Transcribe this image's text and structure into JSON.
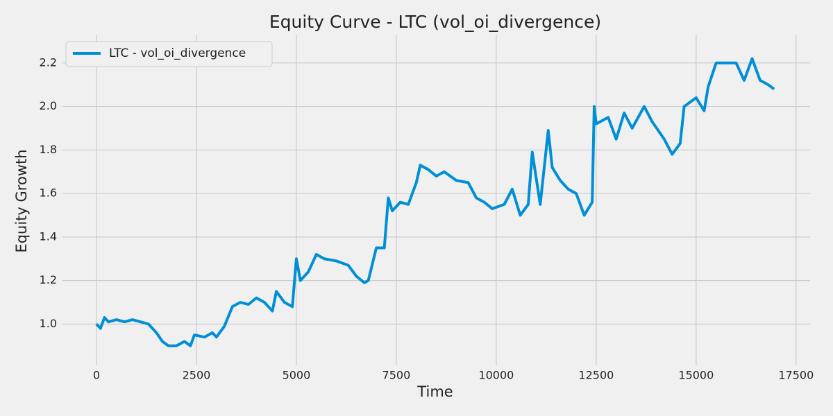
{
  "chart_data": {
    "type": "line",
    "title": "Equity Curve - LTC (vol_oi_divergence)",
    "x_label": "Time",
    "y_label": "Equity Growth",
    "xlim": [
      -850,
      17850
    ],
    "ylim": [
      0.81,
      2.33
    ],
    "xticks": [
      0,
      2500,
      5000,
      7500,
      10000,
      12500,
      15000,
      17500
    ],
    "yticks": [
      {
        "value": 1,
        "label": "1.0"
      },
      1.2,
      1.4,
      1.6,
      1.8,
      {
        "value": 2,
        "label": "2.0"
      },
      2.2
    ],
    "grid": true,
    "legend": "upper left",
    "x": [
      0,
      100,
      200,
      300,
      500,
      700,
      900,
      1100,
      1300,
      1500,
      1650,
      1800,
      2000,
      2200,
      2350,
      2450,
      2700,
      2900,
      3000,
      3200,
      3400,
      3600,
      3800,
      4000,
      4200,
      4400,
      4500,
      4700,
      4900,
      5000,
      5100,
      5300,
      5500,
      5700,
      6000,
      6300,
      6500,
      6700,
      6800,
      7000,
      7200,
      7300,
      7400,
      7600,
      7800,
      8000,
      8100,
      8300,
      8500,
      8700,
      9000,
      9300,
      9500,
      9700,
      9900,
      10200,
      10400,
      10600,
      10800,
      10900,
      11100,
      11300,
      11400,
      11600,
      11800,
      12000,
      12200,
      12400,
      12450,
      12500,
      12800,
      13000,
      13200,
      13400,
      13700,
      13900,
      14200,
      14400,
      14600,
      14700,
      15000,
      15200,
      15300,
      15500,
      15800,
      16000,
      16200,
      16400,
      16600,
      16800,
      16950
    ],
    "series": [
      {
        "name": "LTC - vol_oi_divergence",
        "color": "#008fd5",
        "values": [
          1.0,
          0.98,
          1.03,
          1.01,
          1.02,
          1.01,
          1.02,
          1.01,
          1.0,
          0.96,
          0.92,
          0.9,
          0.9,
          0.92,
          0.9,
          0.95,
          0.94,
          0.96,
          0.94,
          0.99,
          1.08,
          1.1,
          1.09,
          1.12,
          1.1,
          1.06,
          1.15,
          1.1,
          1.08,
          1.3,
          1.2,
          1.24,
          1.32,
          1.3,
          1.29,
          1.27,
          1.22,
          1.19,
          1.2,
          1.35,
          1.35,
          1.58,
          1.52,
          1.56,
          1.55,
          1.65,
          1.73,
          1.71,
          1.68,
          1.7,
          1.66,
          1.65,
          1.58,
          1.56,
          1.53,
          1.55,
          1.62,
          1.5,
          1.55,
          1.79,
          1.55,
          1.89,
          1.72,
          1.66,
          1.62,
          1.6,
          1.5,
          1.56,
          2.0,
          1.92,
          1.95,
          1.85,
          1.97,
          1.9,
          2.0,
          1.93,
          1.85,
          1.78,
          1.83,
          2.0,
          2.04,
          1.98,
          2.09,
          2.2,
          2.2,
          2.2,
          2.12,
          2.22,
          2.12,
          2.1,
          2.08
        ]
      }
    ]
  }
}
